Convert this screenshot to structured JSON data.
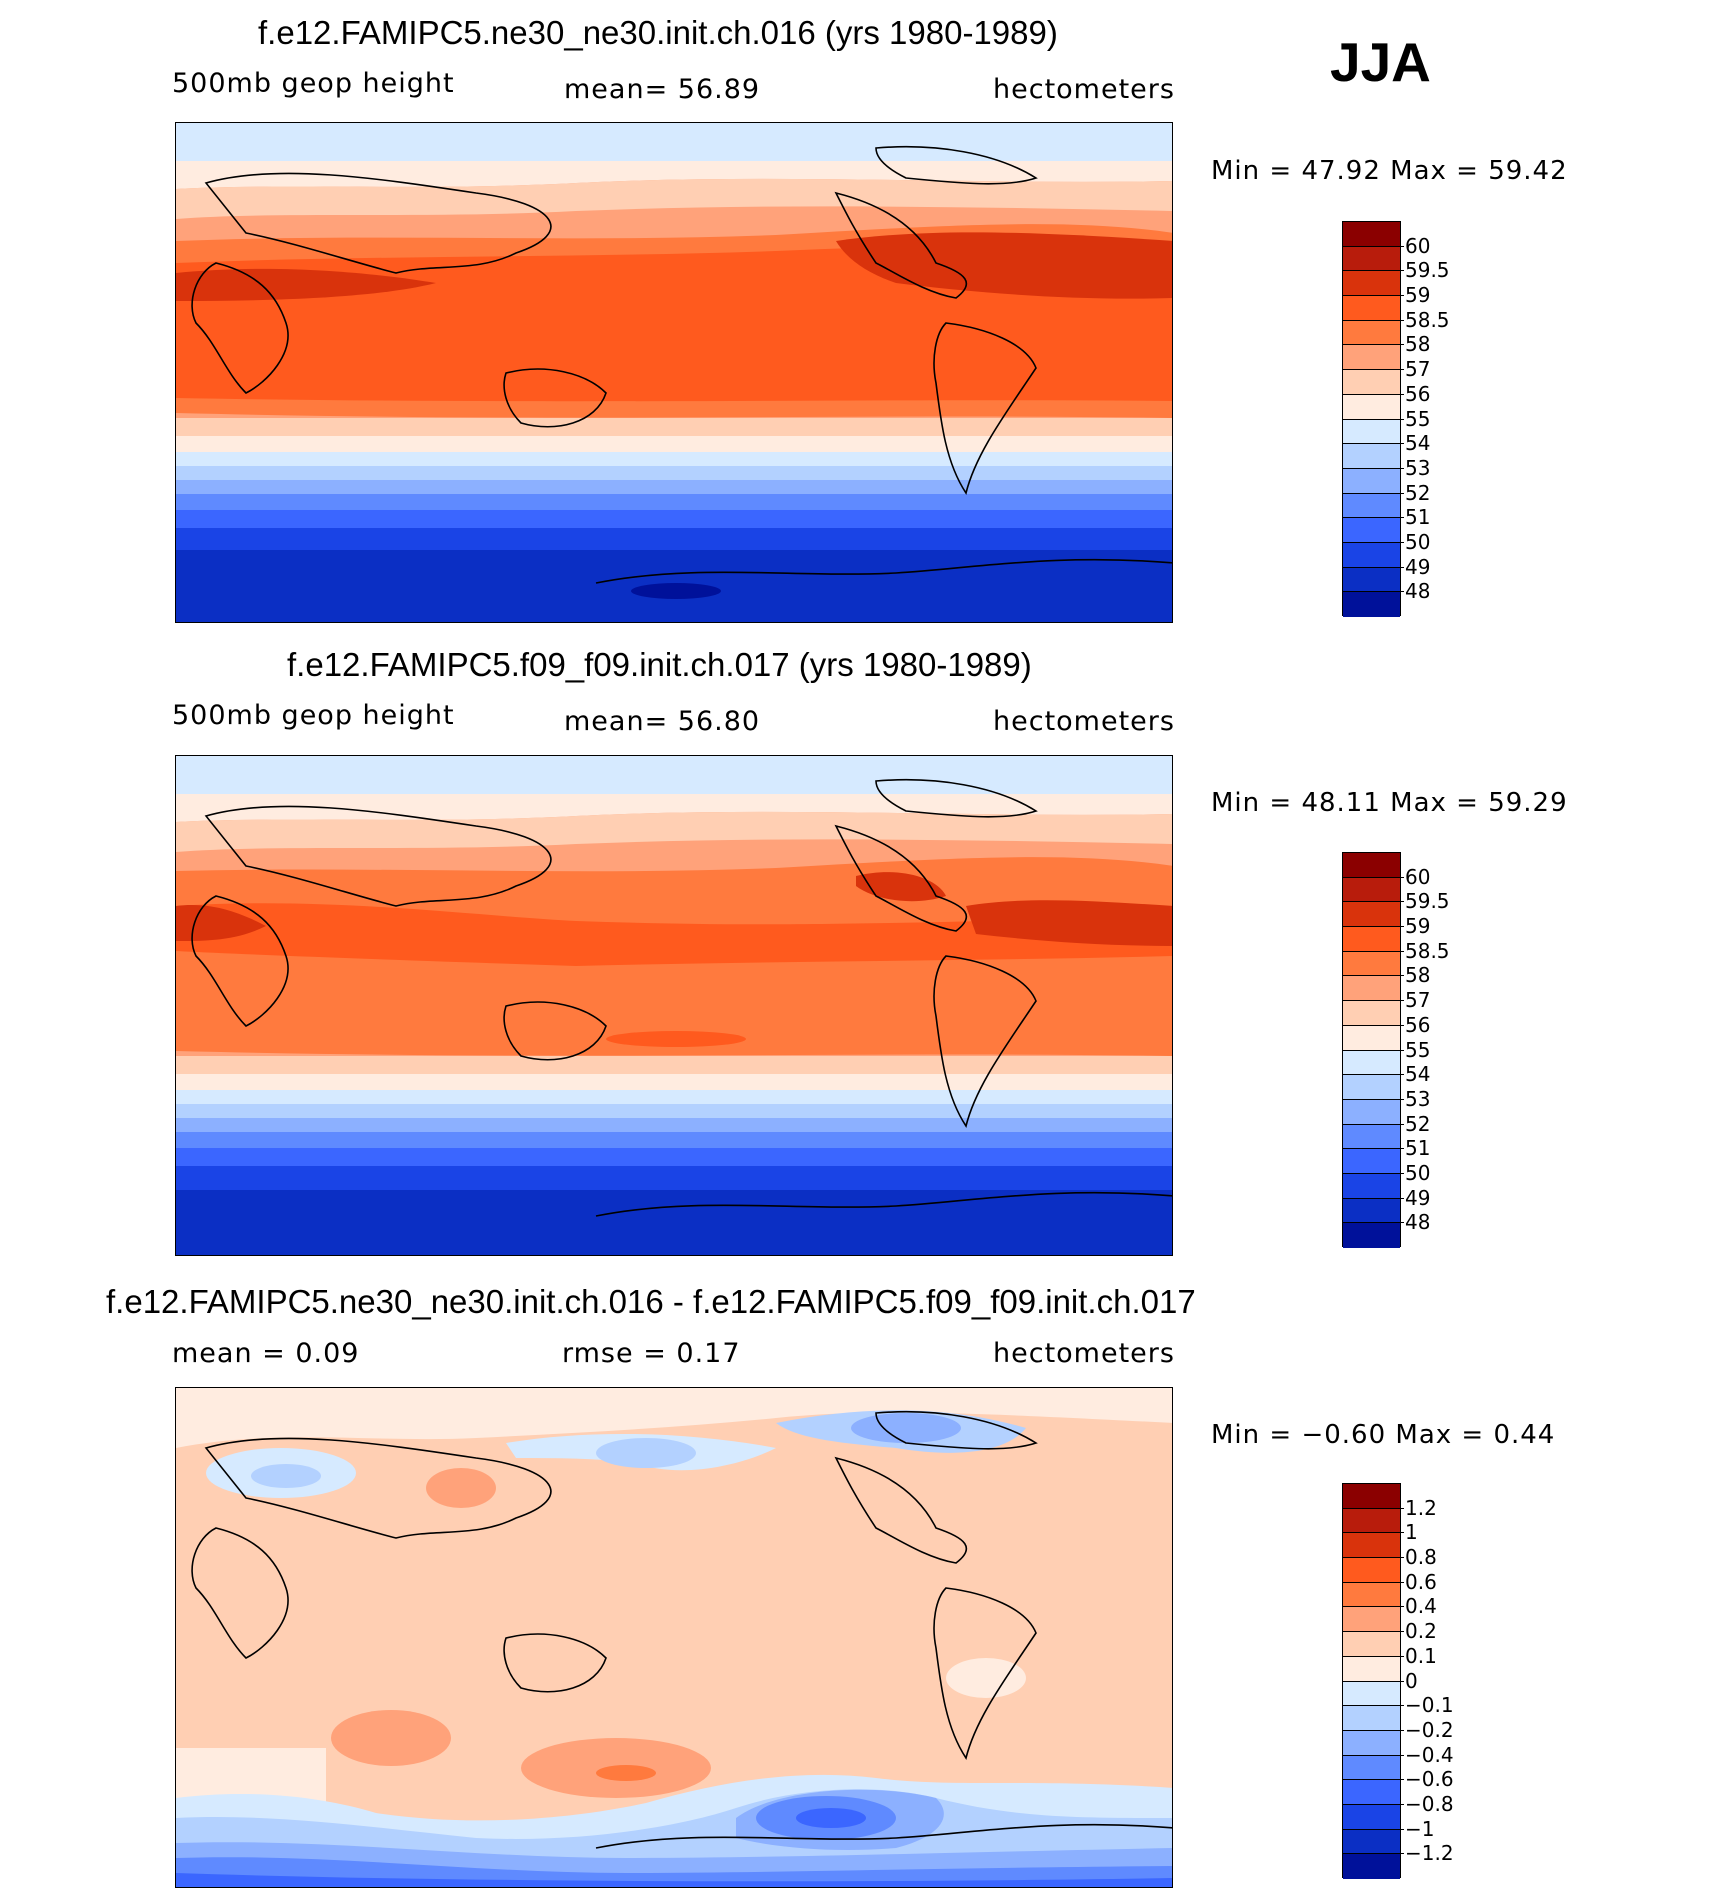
{
  "season": "JJA",
  "panels": [
    {
      "title": "f.e12.FAMIPC5.ne30_ne30.init.ch.016 (yrs 1980-1989)",
      "variable": "500mb geop height",
      "stat": "mean=   56.89",
      "units": "hectometers",
      "minmax": "Min =    47.92  Max =    59.42",
      "levels": [
        "60",
        "59.5",
        "59",
        "58.5",
        "58",
        "57",
        "56",
        "55",
        "54",
        "53",
        "52",
        "51",
        "50",
        "49",
        "48"
      ],
      "colors": [
        "#8b0000",
        "#b81c0c",
        "#d9330c",
        "#ff5a1e",
        "#ff7a3e",
        "#ffa27a",
        "#ffcfb3",
        "#ffece0",
        "#d6eaff",
        "#b3d1ff",
        "#8cb0ff",
        "#5f8aff",
        "#3b66ff",
        "#1a44e6",
        "#0b2fc4",
        "#00119a"
      ]
    },
    {
      "title": "f.e12.FAMIPC5.f09_f09.init.ch.017 (yrs 1980-1989)",
      "variable": "500mb geop height",
      "stat": "mean=   56.80",
      "units": "hectometers",
      "minmax": "Min =    48.11  Max =    59.29",
      "levels": [
        "60",
        "59.5",
        "59",
        "58.5",
        "58",
        "57",
        "56",
        "55",
        "54",
        "53",
        "52",
        "51",
        "50",
        "49",
        "48"
      ],
      "colors": [
        "#8b0000",
        "#b81c0c",
        "#d9330c",
        "#ff5a1e",
        "#ff7a3e",
        "#ffa27a",
        "#ffcfb3",
        "#ffece0",
        "#d6eaff",
        "#b3d1ff",
        "#8cb0ff",
        "#5f8aff",
        "#3b66ff",
        "#1a44e6",
        "#0b2fc4",
        "#00119a"
      ]
    },
    {
      "title": "f.e12.FAMIPC5.ne30_ne30.init.ch.016 - f.e12.FAMIPC5.f09_f09.init.ch.017",
      "stat_left": "mean =    0.09",
      "stat_mid": "rmse =    0.17",
      "units": "hectometers",
      "minmax": "Min =   −0.60  Max =     0.44",
      "levels": [
        "1.2",
        "1",
        "0.8",
        "0.6",
        "0.4",
        "0.2",
        "0.1",
        "0",
        "−0.1",
        "−0.2",
        "−0.4",
        "−0.6",
        "−0.8",
        "−1",
        "−1.2"
      ],
      "colors": [
        "#8b0000",
        "#b81c0c",
        "#d9330c",
        "#ff5a1e",
        "#ff7a3e",
        "#ffa27a",
        "#ffcfb3",
        "#ffece0",
        "#d6eaff",
        "#b3d1ff",
        "#8cb0ff",
        "#5f8aff",
        "#3b66ff",
        "#1a44e6",
        "#0b2fc4",
        "#00119a"
      ]
    }
  ]
}
